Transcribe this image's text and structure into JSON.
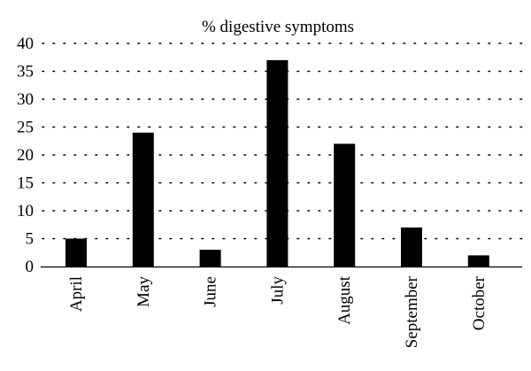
{
  "chart_data": {
    "type": "bar",
    "title": "% digestive symptoms",
    "xlabel": "",
    "ylabel": "",
    "categories": [
      "April",
      "May",
      "June",
      "July",
      "August",
      "September",
      "October"
    ],
    "values": [
      5,
      24,
      3,
      37,
      22,
      7,
      2
    ],
    "ylim": [
      0,
      40
    ],
    "yticks": [
      0,
      5,
      10,
      15,
      20,
      25,
      30,
      35,
      40
    ],
    "grid": true,
    "legend": "none",
    "bar_color": "#000000"
  }
}
